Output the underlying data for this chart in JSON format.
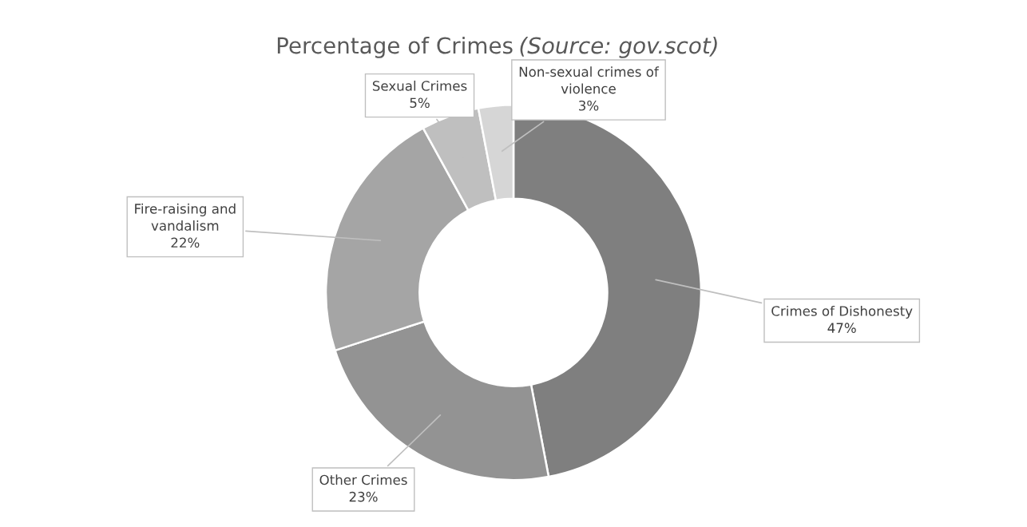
{
  "chart_data": {
    "type": "donut",
    "title": "Percentage of Crimes",
    "annotations": [
      "(Source: gov.scot)"
    ],
    "categories": [
      "Crimes of Dishonesty",
      "Other Crimes",
      "Fire-raising and vandalism",
      "Sexual Crimes",
      "Non-sexual crimes of violence"
    ],
    "values": [
      47,
      23,
      22,
      5,
      3
    ],
    "colors": [
      "#7f7f7f",
      "#939393",
      "#a5a5a5",
      "#bfbfbf",
      "#d6d6d6"
    ],
    "value_labels": [
      "47%",
      "23%",
      "22%",
      "5%",
      "3%"
    ]
  }
}
